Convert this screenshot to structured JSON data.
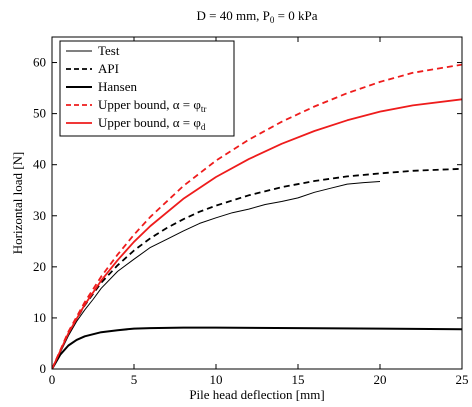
{
  "chart_data": {
    "type": "line",
    "title_main": "D = 40 mm, P",
    "title_sub": "0",
    "title_tail": " = 0 kPa",
    "xlabel": "Pile head deflection [mm]",
    "ylabel": "Horizontal load [N]",
    "xlim": [
      0,
      25
    ],
    "ylim": [
      0,
      65
    ],
    "xticks": [
      0,
      5,
      10,
      15,
      20,
      25
    ],
    "yticks": [
      0,
      10,
      20,
      30,
      40,
      50,
      60
    ],
    "xtick_labels": [
      "0",
      "5",
      "10",
      "15",
      "20",
      "25"
    ],
    "ytick_labels": [
      "0",
      "10",
      "20",
      "30",
      "40",
      "50",
      "60"
    ],
    "grid": false,
    "legend_position": "top-left",
    "series": [
      {
        "name": "Test",
        "color": "#000000",
        "style": "solid-thin",
        "x": [
          0,
          0.5,
          1,
          1.5,
          2,
          2.5,
          3,
          4,
          5,
          6,
          7,
          8,
          9,
          10,
          11,
          12,
          13,
          14,
          15,
          16,
          17,
          18,
          19,
          20
        ],
        "y": [
          0,
          3.2,
          6.5,
          9.3,
          11.6,
          13.6,
          15.8,
          19.1,
          21.5,
          23.8,
          25.4,
          27.0,
          28.5,
          29.6,
          30.6,
          31.3,
          32.2,
          32.8,
          33.5,
          34.6,
          35.4,
          36.2,
          36.5,
          36.7
        ]
      },
      {
        "name": "API",
        "color": "#000000",
        "style": "dashed",
        "x": [
          0,
          1,
          2,
          3,
          4,
          5,
          6,
          7,
          8,
          9,
          10,
          12,
          14,
          16,
          18,
          20,
          22,
          25
        ],
        "y": [
          0,
          7.0,
          12.5,
          16.9,
          20.3,
          23.2,
          25.6,
          27.6,
          29.3,
          30.8,
          32.0,
          34.0,
          35.6,
          36.8,
          37.7,
          38.3,
          38.8,
          39.2
        ]
      },
      {
        "name": "Hansen",
        "color": "#000000",
        "style": "solid-thick",
        "x": [
          0,
          0.5,
          1,
          1.5,
          2,
          3,
          4,
          5,
          6,
          8,
          10,
          15,
          20,
          25
        ],
        "y": [
          0,
          2.8,
          4.6,
          5.7,
          6.4,
          7.2,
          7.6,
          7.9,
          8.0,
          8.1,
          8.1,
          8.0,
          7.9,
          7.8
        ]
      },
      {
        "name": "Upper bound, α = φ",
        "name_sub": "tr",
        "color": "#ee1c1c",
        "style": "dashed",
        "x": [
          0,
          1,
          2,
          3,
          4,
          5,
          6,
          8,
          10,
          12,
          14,
          16,
          18,
          20,
          22,
          25
        ],
        "y": [
          0,
          7.3,
          13.1,
          18.1,
          22.4,
          26.3,
          29.8,
          35.8,
          40.8,
          44.9,
          48.4,
          51.4,
          54.0,
          56.2,
          58.0,
          59.6
        ]
      },
      {
        "name": "Upper bound, α = φ",
        "name_sub": "d",
        "color": "#ee1c1c",
        "style": "solid",
        "x": [
          0,
          1,
          2,
          3,
          4,
          5,
          6,
          8,
          10,
          12,
          14,
          16,
          18,
          20,
          22,
          25
        ],
        "y": [
          0,
          7.0,
          12.6,
          17.3,
          21.3,
          24.9,
          28.0,
          33.3,
          37.6,
          41.1,
          44.1,
          46.6,
          48.7,
          50.4,
          51.6,
          52.8
        ]
      }
    ]
  }
}
